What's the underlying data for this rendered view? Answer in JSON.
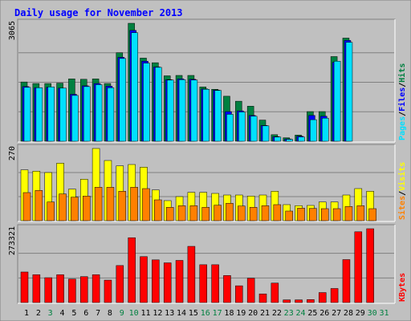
{
  "chart_data": {
    "type": "bar",
    "title": "Daily usage for November 2013",
    "days": [
      "1",
      "2",
      "3",
      "4",
      "5",
      "6",
      "7",
      "8",
      "9",
      "10",
      "11",
      "12",
      "13",
      "14",
      "15",
      "16",
      "17",
      "18",
      "19",
      "20",
      "21",
      "22",
      "23",
      "24",
      "25",
      "26",
      "27",
      "28",
      "29",
      "30",
      "31"
    ],
    "weekend_days": [
      "3",
      "9",
      "10",
      "16",
      "17",
      "23",
      "24",
      "30",
      "31"
    ],
    "colors": {
      "hits": "#008040",
      "files": "#0000ff",
      "pages": "#00e0ff",
      "visits": "#ffff00",
      "sites": "#ff8000",
      "kbytes": "#ff0000",
      "title": "#0000ff",
      "panel_bg": "#c0c0c0",
      "day_normal": "#000000",
      "day_weekend": "#008040"
    },
    "panels": [
      {
        "name": "hits-files-pages",
        "max_label": "3065",
        "ymax": 3065,
        "legend": [
          {
            "text": "Pages",
            "color": "#00e0ff"
          },
          {
            "text": "/",
            "color": "#000000"
          },
          {
            "text": "Files",
            "color": "#0000ff"
          },
          {
            "text": "/",
            "color": "#000000"
          },
          {
            "text": "Hits",
            "color": "#008040"
          }
        ],
        "series": [
          {
            "name": "Hits",
            "values": [
              1540,
              1500,
              1500,
              1510,
              1620,
              1610,
              1620,
              1500,
              2300,
              3065,
              2160,
              2040,
              1700,
              1710,
              1710,
              1410,
              1350,
              1170,
              1040,
              910,
              550,
              170,
              90,
              160,
              770,
              770,
              2200,
              2680,
              0,
              0,
              0
            ]
          },
          {
            "name": "Files",
            "values": [
              1420,
              1390,
              1400,
              1380,
              1220,
              1440,
              1500,
              1430,
              2180,
              2880,
              2080,
              1930,
              1600,
              1620,
              1610,
              1360,
              1330,
              770,
              790,
              670,
              410,
              120,
              60,
              130,
              670,
              650,
              2050,
              2620,
              0,
              0,
              0
            ]
          },
          {
            "name": "Pages",
            "values": [
              1400,
              1390,
              1410,
              1380,
              1190,
              1420,
              1470,
              1390,
              2150,
              2820,
              2030,
              1920,
              1590,
              1600,
              1590,
              1350,
              1320,
              700,
              760,
              650,
              400,
              110,
              50,
              110,
              560,
              600,
              2080,
              2570,
              0,
              0,
              0
            ]
          }
        ]
      },
      {
        "name": "visits-sites",
        "max_label": "270",
        "ymax": 270,
        "legend": [
          {
            "text": "Sites",
            "color": "#ff8000"
          },
          {
            "text": "/",
            "color": "#000000"
          },
          {
            "text": "Visits",
            "color": "#ffff00"
          }
        ],
        "series": [
          {
            "name": "Visits",
            "values": [
              190,
              185,
              180,
              215,
              118,
              155,
              270,
              225,
              205,
              210,
              200,
              115,
              75,
              90,
              106,
              106,
              102,
              96,
              96,
              92,
              96,
              110,
              60,
              56,
              57,
              70,
              70,
              96,
              120,
              110,
              0
            ]
          },
          {
            "name": "Sites",
            "values": [
              105,
              113,
              70,
              100,
              88,
              92,
              125,
              125,
              110,
              125,
              120,
              78,
              50,
              56,
              56,
              50,
              58,
              65,
              55,
              50,
              56,
              60,
              36,
              47,
              46,
              45,
              45,
              53,
              56,
              45,
              0
            ]
          }
        ]
      },
      {
        "name": "kbytes",
        "max_label": "273321",
        "ymax": 273321,
        "legend": [
          {
            "text": "KBytes",
            "color": "#ff0000"
          }
        ],
        "series": [
          {
            "name": "KBytes",
            "values": [
              113000,
              103000,
              92000,
              103000,
              87000,
              96000,
              103000,
              83000,
              137000,
              240000,
              170000,
              158000,
              147000,
              156000,
              208000,
              140000,
              140000,
              100000,
              62000,
              90000,
              32000,
              72000,
              10000,
              10000,
              11000,
              37000,
              52000,
              159000,
              262000,
              273321,
              0
            ]
          }
        ]
      }
    ]
  }
}
